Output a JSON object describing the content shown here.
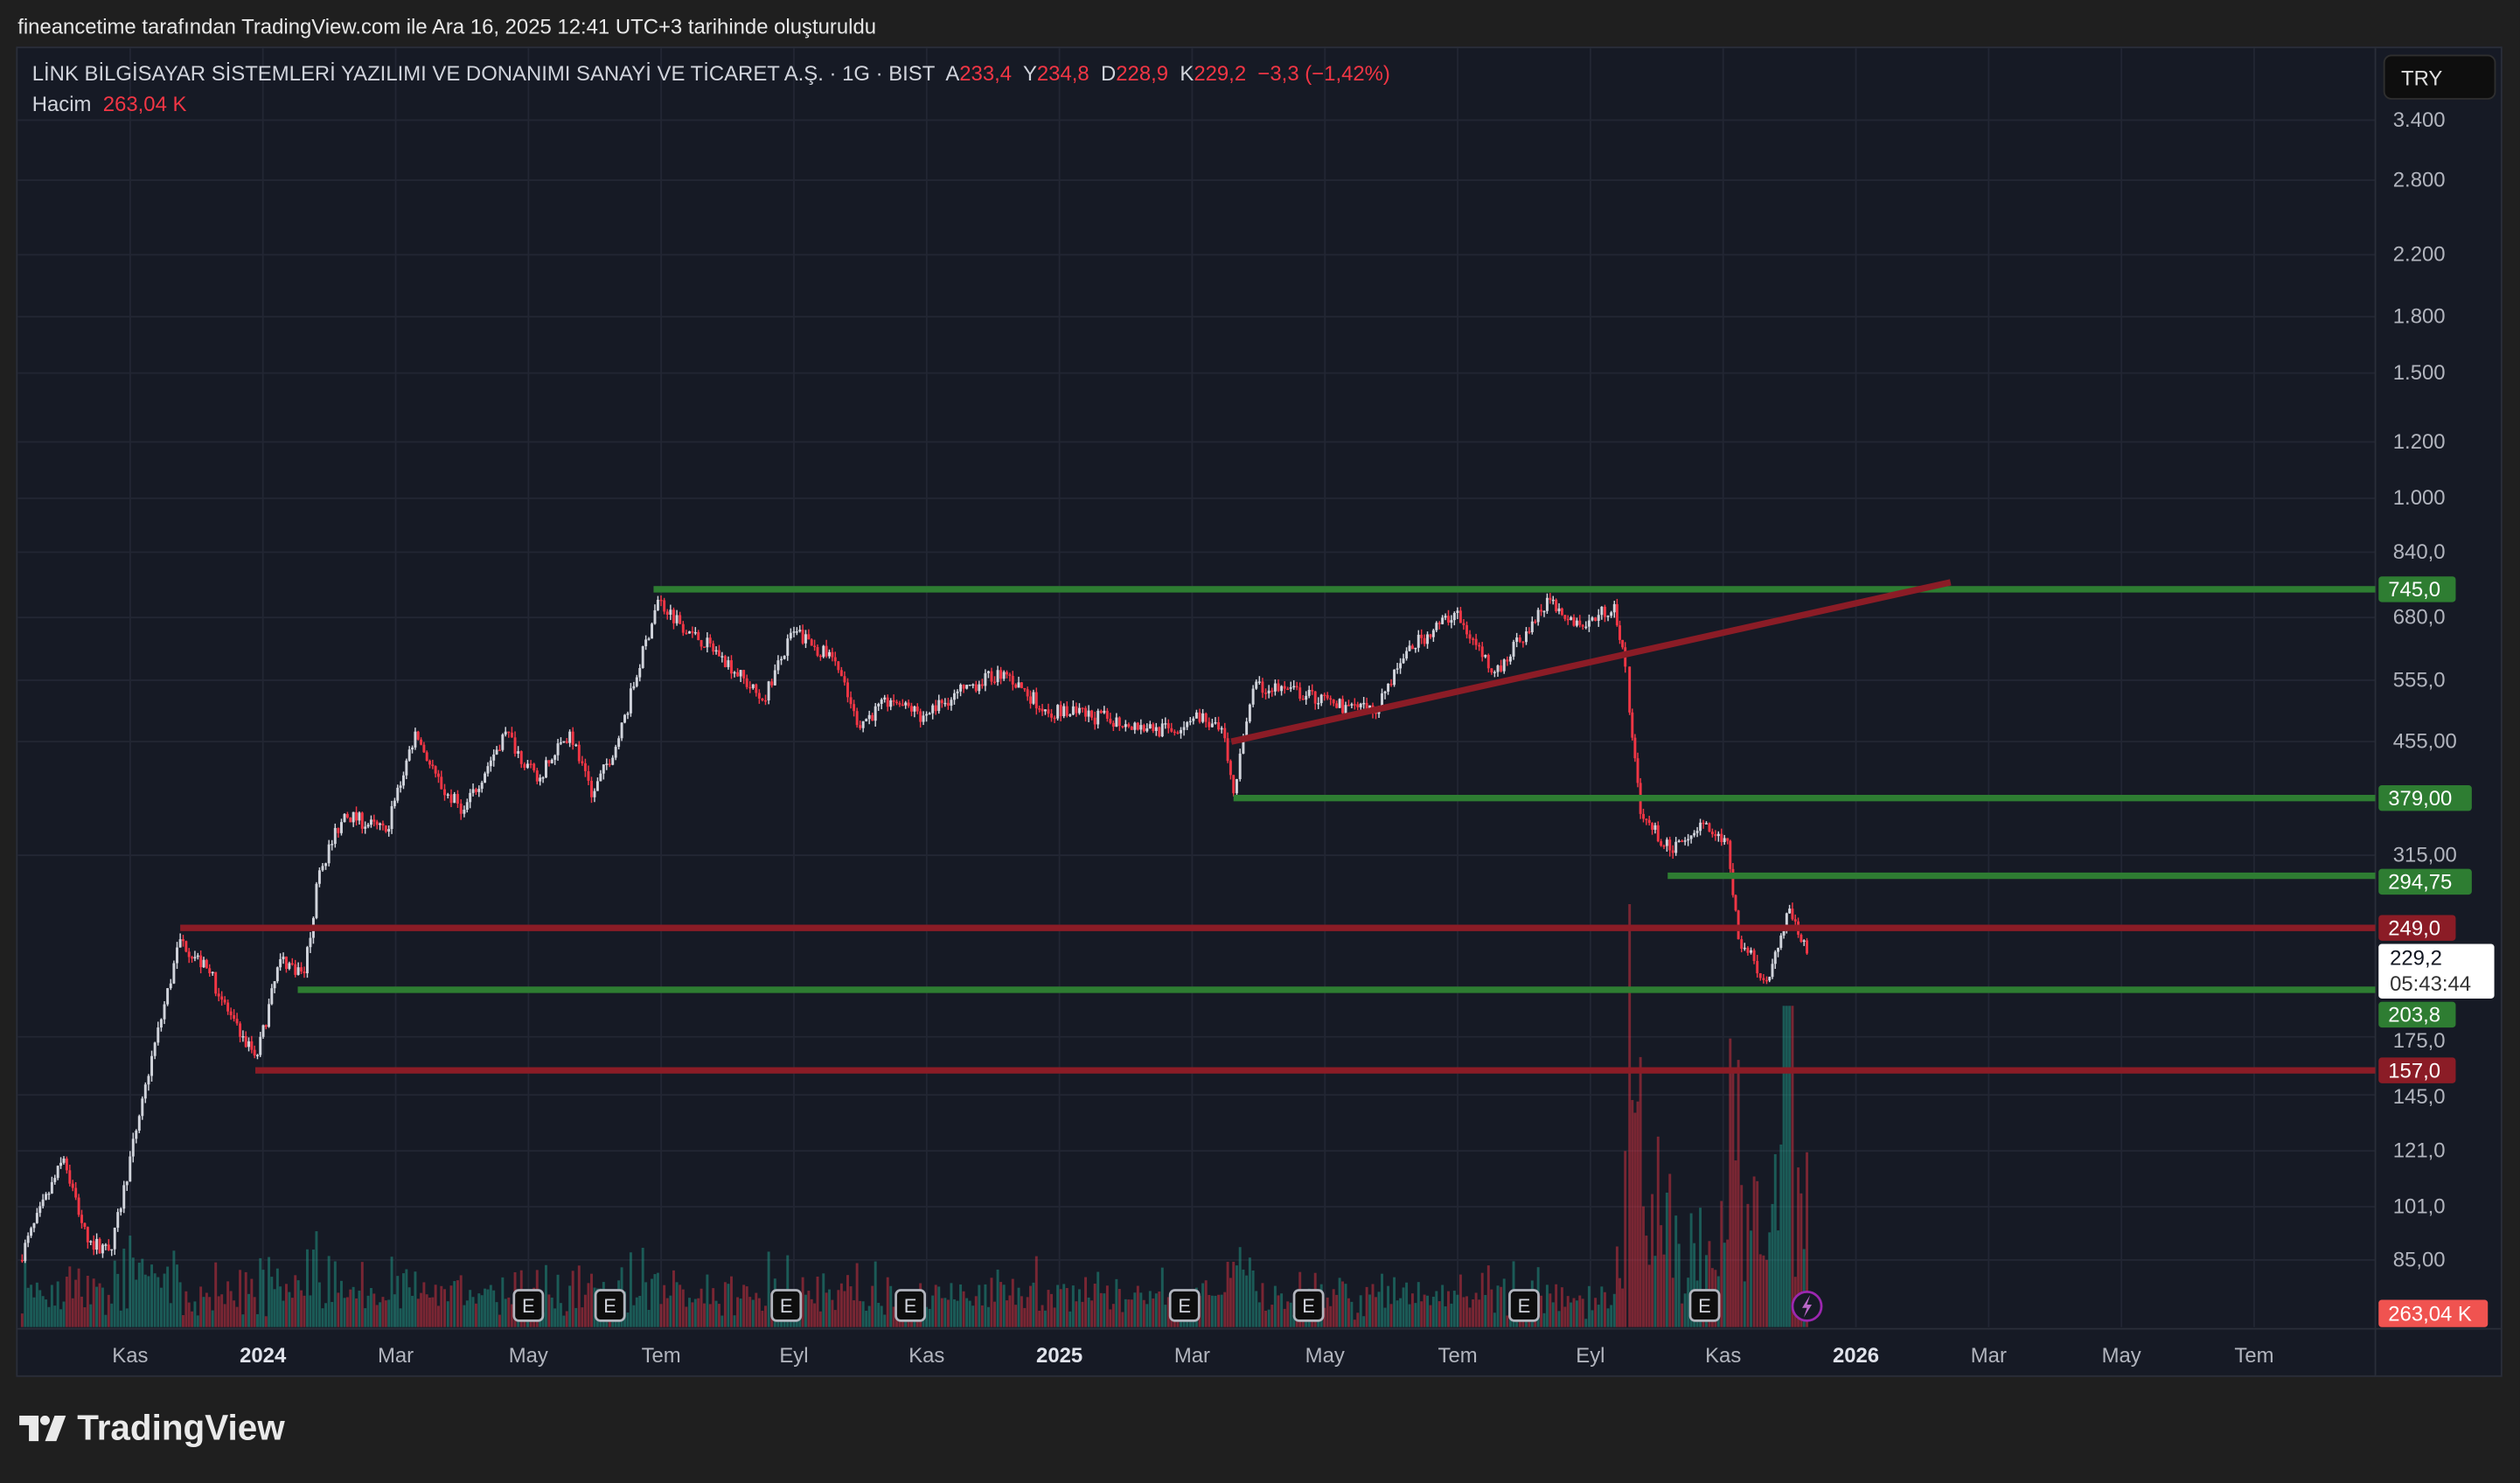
{
  "header": {
    "attribution": "fineancetime tarafından TradingView.com ile Ara 16, 2025 12:41 UTC+3 tarihinde oluşturuldu"
  },
  "legend": {
    "title": "LİNK BİLGİSAYAR SİSTEMLERİ YAZILIMI VE DONANIMI SANAYİ VE TİCARET A.Ş. · 1G · BIST",
    "open_label": "A",
    "open": "233,4",
    "high_label": "Y",
    "high": "234,8",
    "low_label": "D",
    "low": "228,9",
    "close_label": "K",
    "close": "229,2",
    "change": "−3,3 (−1,42%)",
    "volume_label": "Hacim",
    "volume": "263,04 K"
  },
  "currency_button": "TRY",
  "footer": {
    "logo": "TradingView"
  },
  "chart_data": {
    "type": "candlestick",
    "price_scale": "log",
    "ylim": [
      80,
      3700
    ],
    "colors": {
      "up": "#d1d4dc",
      "down": "#f23645",
      "support": "#2e7d32",
      "resistance": "#8b1c26",
      "grid": "#222633",
      "text": "#b2b5be"
    },
    "y_ticks": [
      {
        "value": 3400,
        "label": "3.400"
      },
      {
        "value": 2800,
        "label": "2.800"
      },
      {
        "value": 2200,
        "label": "2.200"
      },
      {
        "value": 1800,
        "label": "1.800"
      },
      {
        "value": 1500,
        "label": "1.500"
      },
      {
        "value": 1200,
        "label": "1.200"
      },
      {
        "value": 1000,
        "label": "1.000"
      },
      {
        "value": 840,
        "label": "840,0"
      },
      {
        "value": 680,
        "label": "680,0"
      },
      {
        "value": 555,
        "label": "555,0"
      },
      {
        "value": 455,
        "label": "455,00"
      },
      {
        "value": 315,
        "label": "315,00"
      },
      {
        "value": 175,
        "label": "175,0"
      },
      {
        "value": 145,
        "label": "145,0"
      },
      {
        "value": 121,
        "label": "121,0"
      },
      {
        "value": 101,
        "label": "101,0"
      },
      {
        "value": 85,
        "label": "85,00"
      }
    ],
    "x_ticks": [
      {
        "date": "2023-11-01",
        "label": "Kas",
        "bold": false
      },
      {
        "date": "2024-01-01",
        "label": "2024",
        "bold": true
      },
      {
        "date": "2024-03-01",
        "label": "Mar",
        "bold": false
      },
      {
        "date": "2024-05-01",
        "label": "May",
        "bold": false
      },
      {
        "date": "2024-07-01",
        "label": "Tem",
        "bold": false
      },
      {
        "date": "2024-09-01",
        "label": "Eyl",
        "bold": false
      },
      {
        "date": "2024-11-01",
        "label": "Kas",
        "bold": false
      },
      {
        "date": "2025-01-01",
        "label": "2025",
        "bold": true
      },
      {
        "date": "2025-03-01",
        "label": "Mar",
        "bold": false
      },
      {
        "date": "2025-05-01",
        "label": "May",
        "bold": false
      },
      {
        "date": "2025-07-01",
        "label": "Tem",
        "bold": false
      },
      {
        "date": "2025-09-01",
        "label": "Eyl",
        "bold": false
      },
      {
        "date": "2025-11-01",
        "label": "Kas",
        "bold": false
      },
      {
        "date": "2026-01-01",
        "label": "2026",
        "bold": true
      },
      {
        "date": "2026-03-01",
        "label": "Mar",
        "bold": false
      },
      {
        "date": "2026-05-01",
        "label": "May",
        "bold": false
      },
      {
        "date": "2026-07-01",
        "label": "Tem",
        "bold": false
      }
    ],
    "price_path": [
      [
        "2023-09-11",
        85
      ],
      [
        "2023-10-01",
        118
      ],
      [
        "2023-10-12",
        90
      ],
      [
        "2023-10-23",
        88
      ],
      [
        "2023-11-08",
        150
      ],
      [
        "2023-11-24",
        240
      ],
      [
        "2023-12-07",
        215
      ],
      [
        "2023-12-21",
        175
      ],
      [
        "2023-12-29",
        165
      ],
      [
        "2024-01-09",
        225
      ],
      [
        "2024-01-20",
        215
      ],
      [
        "2024-01-27",
        300
      ],
      [
        "2024-02-08",
        360
      ],
      [
        "2024-02-27",
        340
      ],
      [
        "2024-03-10",
        470
      ],
      [
        "2024-03-22",
        390
      ],
      [
        "2024-04-02",
        365
      ],
      [
        "2024-04-21",
        470
      ],
      [
        "2024-05-05",
        400
      ],
      [
        "2024-05-20",
        470
      ],
      [
        "2024-05-30",
        380
      ],
      [
        "2024-06-12",
        460
      ],
      [
        "2024-06-30",
        720
      ],
      [
        "2024-07-14",
        650
      ],
      [
        "2024-07-29",
        600
      ],
      [
        "2024-08-17",
        520
      ],
      [
        "2024-09-01",
        650
      ],
      [
        "2024-09-20",
        590
      ],
      [
        "2024-09-30",
        480
      ],
      [
        "2024-10-15",
        520
      ],
      [
        "2024-10-30",
        495
      ],
      [
        "2024-11-18",
        540
      ],
      [
        "2024-12-06",
        570
      ],
      [
        "2024-12-25",
        505
      ],
      [
        "2025-01-23",
        490
      ],
      [
        "2025-02-22",
        470
      ],
      [
        "2025-03-03",
        500
      ],
      [
        "2025-03-16",
        460
      ],
      [
        "2025-03-20",
        385
      ],
      [
        "2025-03-29",
        540
      ],
      [
        "2025-04-13",
        540
      ],
      [
        "2025-05-05",
        515
      ],
      [
        "2025-05-23",
        500
      ],
      [
        "2025-06-08",
        610
      ],
      [
        "2025-06-30",
        690
      ],
      [
        "2025-07-18",
        570
      ],
      [
        "2025-08-02",
        650
      ],
      [
        "2025-08-13",
        720
      ],
      [
        "2025-08-28",
        660
      ],
      [
        "2025-09-12",
        710
      ],
      [
        "2025-09-17",
        580
      ],
      [
        "2025-09-19",
        500
      ],
      [
        "2025-09-24",
        360
      ],
      [
        "2025-10-07",
        320
      ],
      [
        "2025-10-21",
        350
      ],
      [
        "2025-11-03",
        330
      ],
      [
        "2025-11-08",
        240
      ],
      [
        "2025-11-21",
        210
      ],
      [
        "2025-12-01",
        265
      ],
      [
        "2025-12-09",
        229.2
      ]
    ],
    "levels": [
      {
        "price": 745,
        "label": "745,0",
        "start": "2024-06-28",
        "kind": "support"
      },
      {
        "price": 379,
        "label": "379,00",
        "start": "2025-03-20",
        "kind": "support"
      },
      {
        "price": 294.75,
        "label": "294,75",
        "start": "2025-10-06",
        "kind": "support"
      },
      {
        "price": 249,
        "label": "249,0",
        "start": "2023-11-24",
        "kind": "resistance"
      },
      {
        "price": 203.8,
        "label": "203,8",
        "start": "2024-01-17",
        "kind": "support"
      },
      {
        "price": 157,
        "label": "157,0",
        "start": "2023-12-28",
        "kind": "resistance"
      }
    ],
    "trendline": {
      "start": [
        "2025-03-19",
        455
      ],
      "end": [
        "2026-02-14",
        762
      ]
    },
    "last_price": {
      "price": 229.2,
      "label": "229,2",
      "countdown": "05:43:44"
    },
    "volume_axis_label": "263,04 K",
    "earnings_markers": {
      "label": "E",
      "dates": [
        "2024-05-01",
        "2024-06-08",
        "2024-08-28",
        "2024-10-24",
        "2025-02-28",
        "2025-04-24",
        "2025-08-01",
        "2025-10-23"
      ]
    },
    "dividend_marker_date": "2025-12-09"
  }
}
